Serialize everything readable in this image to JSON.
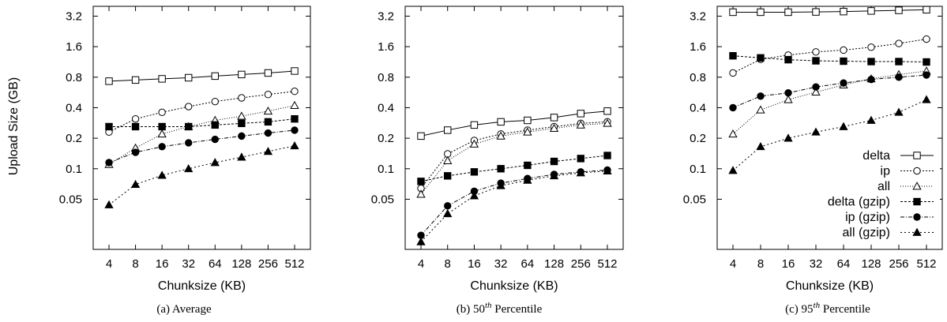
{
  "figure": {
    "ylabel": "Upload Size (GB)",
    "xlabel": "Chunksize (KB)"
  },
  "chart_data": [
    {
      "type": "line",
      "caption": "(a)  Average",
      "xlabel": "Chunksize (KB)",
      "ylabel": "Upload Size (GB)",
      "yscale": "log2",
      "ylim": [
        0.016,
        4.0
      ],
      "yticks": [
        "3.2",
        "1.6",
        "0.8",
        "0.4",
        "0.2",
        "0.1",
        "0.05"
      ],
      "categories": [
        "4",
        "8",
        "16",
        "32",
        "64",
        "128",
        "256",
        "512"
      ],
      "legend": "none",
      "grid": false,
      "series": [
        {
          "name": "delta",
          "values": [
            0.73,
            0.75,
            0.77,
            0.79,
            0.82,
            0.85,
            0.88,
            0.92
          ]
        },
        {
          "name": "ip",
          "values": [
            0.23,
            0.31,
            0.36,
            0.41,
            0.46,
            0.5,
            0.54,
            0.58
          ]
        },
        {
          "name": "all",
          "values": [
            0.11,
            0.16,
            0.22,
            0.26,
            0.3,
            0.33,
            0.37,
            0.42
          ]
        },
        {
          "name": "delta (gzip)",
          "values": [
            0.26,
            0.26,
            0.26,
            0.26,
            0.27,
            0.28,
            0.29,
            0.31
          ]
        },
        {
          "name": "ip (gzip)",
          "values": [
            0.115,
            0.145,
            0.165,
            0.18,
            0.195,
            0.21,
            0.225,
            0.24
          ]
        },
        {
          "name": "all (gzip)",
          "values": [
            0.044,
            0.07,
            0.086,
            0.1,
            0.115,
            0.13,
            0.148,
            0.168
          ]
        }
      ]
    },
    {
      "type": "line",
      "caption": "(b)  50",
      "caption_sup": "th",
      "caption_rest": " Percentile",
      "xlabel": "Chunksize (KB)",
      "yscale": "log2",
      "ylim": [
        0.016,
        4.0
      ],
      "yticks": [
        "3.2",
        "1.6",
        "0.8",
        "0.4",
        "0.2",
        "0.1",
        "0.05"
      ],
      "categories": [
        "4",
        "8",
        "16",
        "32",
        "64",
        "128",
        "256",
        "512"
      ],
      "legend": "none",
      "grid": false,
      "series": [
        {
          "name": "delta",
          "values": [
            0.21,
            0.24,
            0.27,
            0.29,
            0.3,
            0.32,
            0.35,
            0.37
          ]
        },
        {
          "name": "ip",
          "values": [
            0.064,
            0.14,
            0.19,
            0.22,
            0.24,
            0.26,
            0.28,
            0.29
          ]
        },
        {
          "name": "all",
          "values": [
            0.056,
            0.12,
            0.175,
            0.21,
            0.23,
            0.25,
            0.27,
            0.28
          ]
        },
        {
          "name": "delta (gzip)",
          "values": [
            0.075,
            0.085,
            0.093,
            0.1,
            0.108,
            0.118,
            0.126,
            0.135
          ]
        },
        {
          "name": "ip (gzip)",
          "values": [
            0.022,
            0.043,
            0.06,
            0.072,
            0.08,
            0.088,
            0.093,
            0.097
          ]
        },
        {
          "name": "all (gzip)",
          "values": [
            0.019,
            0.036,
            0.054,
            0.068,
            0.077,
            0.085,
            0.091,
            0.095
          ]
        }
      ]
    },
    {
      "type": "line",
      "caption": "(c)  95",
      "caption_sup": "th",
      "caption_rest": " Percentile",
      "xlabel": "Chunksize (KB)",
      "yscale": "log2",
      "ylim": [
        0.016,
        4.0
      ],
      "yticks": [
        "3.2",
        "1.6",
        "0.8",
        "0.4",
        "0.2",
        "0.1",
        "0.05"
      ],
      "categories": [
        "4",
        "8",
        "16",
        "32",
        "64",
        "128",
        "256",
        "512"
      ],
      "legend": "bottom-right",
      "grid": false,
      "series": [
        {
          "name": "delta",
          "values": [
            3.5,
            3.5,
            3.5,
            3.52,
            3.55,
            3.6,
            3.65,
            3.7
          ]
        },
        {
          "name": "ip",
          "values": [
            0.88,
            1.2,
            1.32,
            1.42,
            1.48,
            1.58,
            1.72,
            1.9
          ]
        },
        {
          "name": "all",
          "values": [
            0.22,
            0.38,
            0.48,
            0.57,
            0.67,
            0.77,
            0.85,
            0.92
          ]
        },
        {
          "name": "delta (gzip)",
          "values": [
            1.3,
            1.24,
            1.19,
            1.16,
            1.15,
            1.14,
            1.14,
            1.13
          ]
        },
        {
          "name": "ip (gzip)",
          "values": [
            0.4,
            0.52,
            0.56,
            0.64,
            0.7,
            0.76,
            0.8,
            0.84
          ]
        },
        {
          "name": "all (gzip)",
          "values": [
            0.096,
            0.165,
            0.2,
            0.23,
            0.26,
            0.3,
            0.36,
            0.48
          ]
        }
      ]
    }
  ],
  "series_styles": [
    {
      "marker": "square-open",
      "dash": ""
    },
    {
      "marker": "circle-open",
      "dash": "2,2"
    },
    {
      "marker": "triangle-open",
      "dash": "1,2"
    },
    {
      "marker": "square-filled",
      "dash": "3,2"
    },
    {
      "marker": "circle-filled",
      "dash": "5,2,1,2"
    },
    {
      "marker": "triangle-filled",
      "dash": "2,3"
    }
  ]
}
